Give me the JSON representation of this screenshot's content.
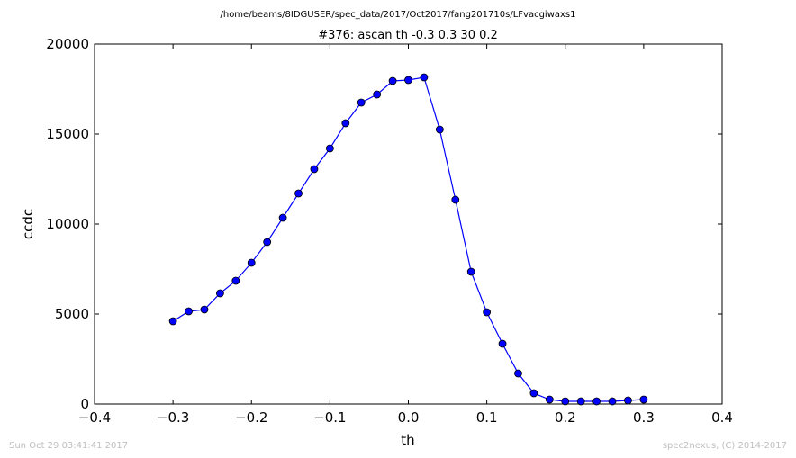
{
  "chart_data": {
    "type": "line",
    "suptitle": "/home/beams/8IDGUSER/spec_data/2017/Oct2017/fang201710s/LFvacgiwaxs1",
    "title": "#376: ascan  th -0.3 0.3  30 0.2",
    "xlabel": "th",
    "ylabel": "ccdc",
    "xlim": [
      -0.4,
      0.4
    ],
    "ylim": [
      0,
      20000
    ],
    "xticks": [
      "−0.4",
      "−0.3",
      "−0.2",
      "−0.1",
      "0.0",
      "0.1",
      "0.2",
      "0.3",
      "0.4"
    ],
    "yticks": [
      "0",
      "5000",
      "10000",
      "15000",
      "20000"
    ],
    "grid": false,
    "series": [
      {
        "color": "#0000ff",
        "x": [
          -0.3,
          -0.28,
          -0.26,
          -0.24,
          -0.22,
          -0.2,
          -0.18,
          -0.16,
          -0.14,
          -0.12,
          -0.1,
          -0.08,
          -0.06,
          -0.04,
          -0.02,
          0.0,
          0.02,
          0.04,
          0.06,
          0.08,
          0.1,
          0.12,
          0.14,
          0.16,
          0.18,
          0.2,
          0.22,
          0.24,
          0.26,
          0.28,
          0.3
        ],
        "y": [
          4600,
          5150,
          5250,
          6150,
          6850,
          7850,
          9000,
          10350,
          11700,
          13050,
          14200,
          15600,
          16750,
          17200,
          17950,
          18000,
          18150,
          15250,
          11350,
          7350,
          5100,
          3350,
          1700,
          600,
          250,
          150,
          150,
          150,
          150,
          200,
          250
        ]
      }
    ]
  },
  "footer": {
    "left": "Sun Oct 29 03:41:41 2017",
    "right": "spec2nexus, (C) 2014-2017"
  }
}
